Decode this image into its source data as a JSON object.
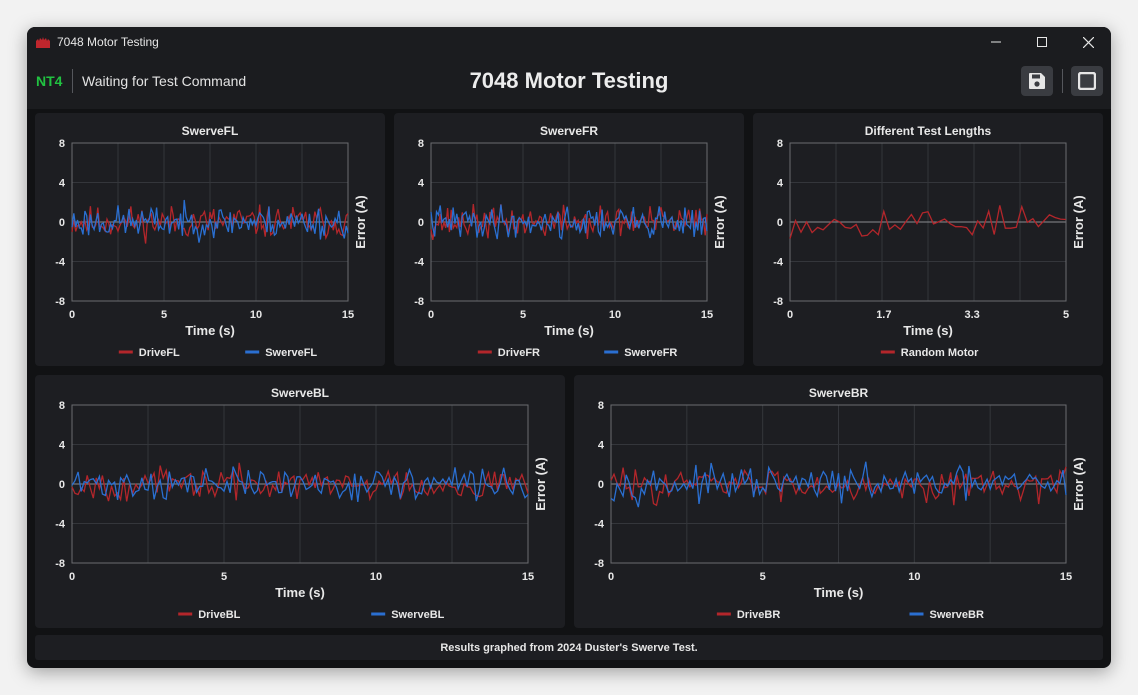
{
  "window": {
    "title": "7048 Motor Testing"
  },
  "header": {
    "nt_label": "NT4",
    "status": "Waiting for Test Command",
    "title": "7048 Motor Testing",
    "save_icon": "save-icon",
    "stop_icon": "stop-icon"
  },
  "footer": {
    "text": "Results graphed from 2024 Duster's Swerve Test."
  },
  "colors": {
    "red": "#b3262b",
    "blue": "#2a6fd1",
    "accent_green": "#21c241"
  },
  "chart_data": [
    {
      "type": "line",
      "title": "SwerveFL",
      "xlabel": "Time (s)",
      "ylabel": "Error (A)",
      "xlim": [
        0,
        15
      ],
      "ylim": [
        -8,
        8
      ],
      "xticks": [
        0,
        5,
        10,
        15
      ],
      "yticks": [
        8,
        4,
        0,
        -4,
        -8
      ],
      "grid": true,
      "legend": "bottom",
      "series": [
        {
          "name": "DriveFL",
          "color": "#b3262b",
          "pattern": "noise",
          "samples": 151,
          "seed": 11
        },
        {
          "name": "SwerveFL",
          "color": "#2a6fd1",
          "pattern": "noise",
          "samples": 151,
          "seed": 23
        }
      ]
    },
    {
      "type": "line",
      "title": "SwerveFR",
      "xlabel": "Time (s)",
      "ylabel": "Error (A)",
      "xlim": [
        0,
        15
      ],
      "ylim": [
        -8,
        8
      ],
      "xticks": [
        0,
        5,
        10,
        15
      ],
      "yticks": [
        8,
        4,
        0,
        -4,
        -8
      ],
      "grid": true,
      "legend": "bottom",
      "series": [
        {
          "name": "DriveFR",
          "color": "#b3262b",
          "pattern": "noise",
          "samples": 151,
          "seed": 37
        },
        {
          "name": "SwerveFR",
          "color": "#2a6fd1",
          "pattern": "noise",
          "samples": 151,
          "seed": 41
        }
      ]
    },
    {
      "type": "line",
      "title": "Different Test Lengths",
      "xlabel": "Time (s)",
      "ylabel": "Error (A)",
      "xlim": [
        0,
        5
      ],
      "ylim": [
        -8,
        8
      ],
      "xticks": [
        0,
        1.7,
        3.3,
        5
      ],
      "yticks": [
        8,
        4,
        0,
        -4,
        -8
      ],
      "grid": true,
      "legend": "bottom",
      "series": [
        {
          "name": "Random Motor",
          "color": "#b3262b",
          "pattern": "noise",
          "samples": 51,
          "seed": 53
        }
      ]
    },
    {
      "type": "line",
      "title": "SwerveBL",
      "xlabel": "Time (s)",
      "ylabel": "Error (A)",
      "xlim": [
        0,
        15
      ],
      "ylim": [
        -8,
        8
      ],
      "xticks": [
        0,
        5,
        10,
        15
      ],
      "yticks": [
        8,
        4,
        0,
        -4,
        -8
      ],
      "grid": true,
      "legend": "bottom",
      "series": [
        {
          "name": "DriveBL",
          "color": "#b3262b",
          "pattern": "noise",
          "samples": 151,
          "seed": 67
        },
        {
          "name": "SwerveBL",
          "color": "#2a6fd1",
          "pattern": "noise",
          "samples": 151,
          "seed": 71
        }
      ]
    },
    {
      "type": "line",
      "title": "SwerveBR",
      "xlabel": "Time (s)",
      "ylabel": "Error (A)",
      "xlim": [
        0,
        15
      ],
      "ylim": [
        -8,
        8
      ],
      "xticks": [
        0,
        5,
        10,
        15
      ],
      "yticks": [
        8,
        4,
        0,
        -4,
        -8
      ],
      "grid": true,
      "legend": "bottom",
      "series": [
        {
          "name": "DriveBR",
          "color": "#b3262b",
          "pattern": "noise",
          "samples": 151,
          "seed": 83
        },
        {
          "name": "SwerveBR",
          "color": "#2a6fd1",
          "pattern": "noise",
          "samples": 151,
          "seed": 97
        }
      ]
    }
  ]
}
